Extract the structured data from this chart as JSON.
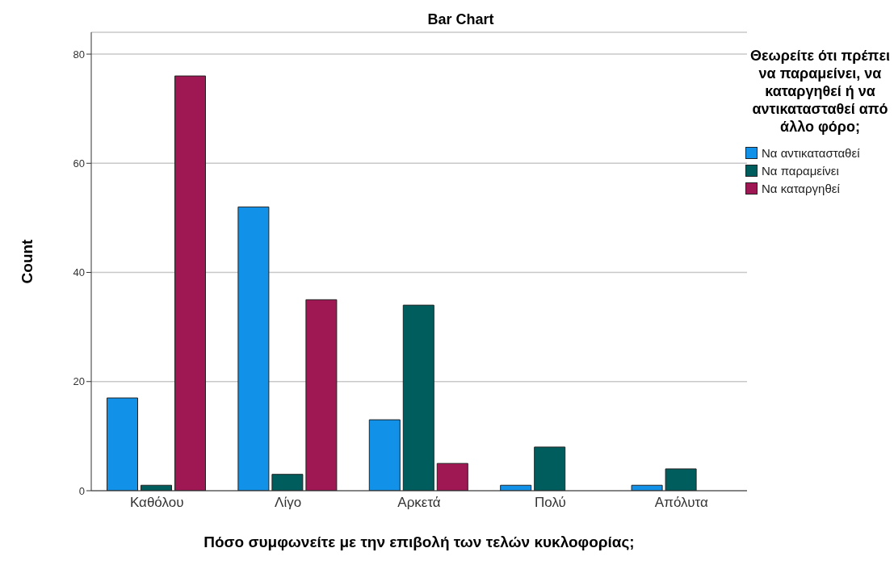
{
  "chart_data": {
    "type": "bar",
    "title": "Bar Chart",
    "xlabel": "Πόσο συμφωνείτε με την επιβολή των τελών κυκλοφορίας;",
    "ylabel": "Count",
    "legend_title": "Θεωρείτε ότι πρέπει να παραμείνει, να καταργηθεί ή να αντικατασταθεί από άλλο φόρο;",
    "categories": [
      "Καθόλου",
      "Λίγο",
      "Αρκετά",
      "Πολύ",
      "Απόλυτα"
    ],
    "series": [
      {
        "name": "Να αντικατασταθεί",
        "color": "#1192e8",
        "values": [
          17,
          52,
          13,
          1,
          1
        ]
      },
      {
        "name": "Να παραμείνει",
        "color": "#005d5d",
        "values": [
          1,
          3,
          34,
          8,
          4
        ]
      },
      {
        "name": "Να καταργηθεί",
        "color": "#9f1853",
        "values": [
          76,
          35,
          5,
          null,
          null
        ]
      }
    ],
    "ylim": [
      0,
      84
    ],
    "yticks": [
      0,
      20,
      40,
      60,
      80
    ],
    "grid": "y",
    "legend": "right"
  }
}
